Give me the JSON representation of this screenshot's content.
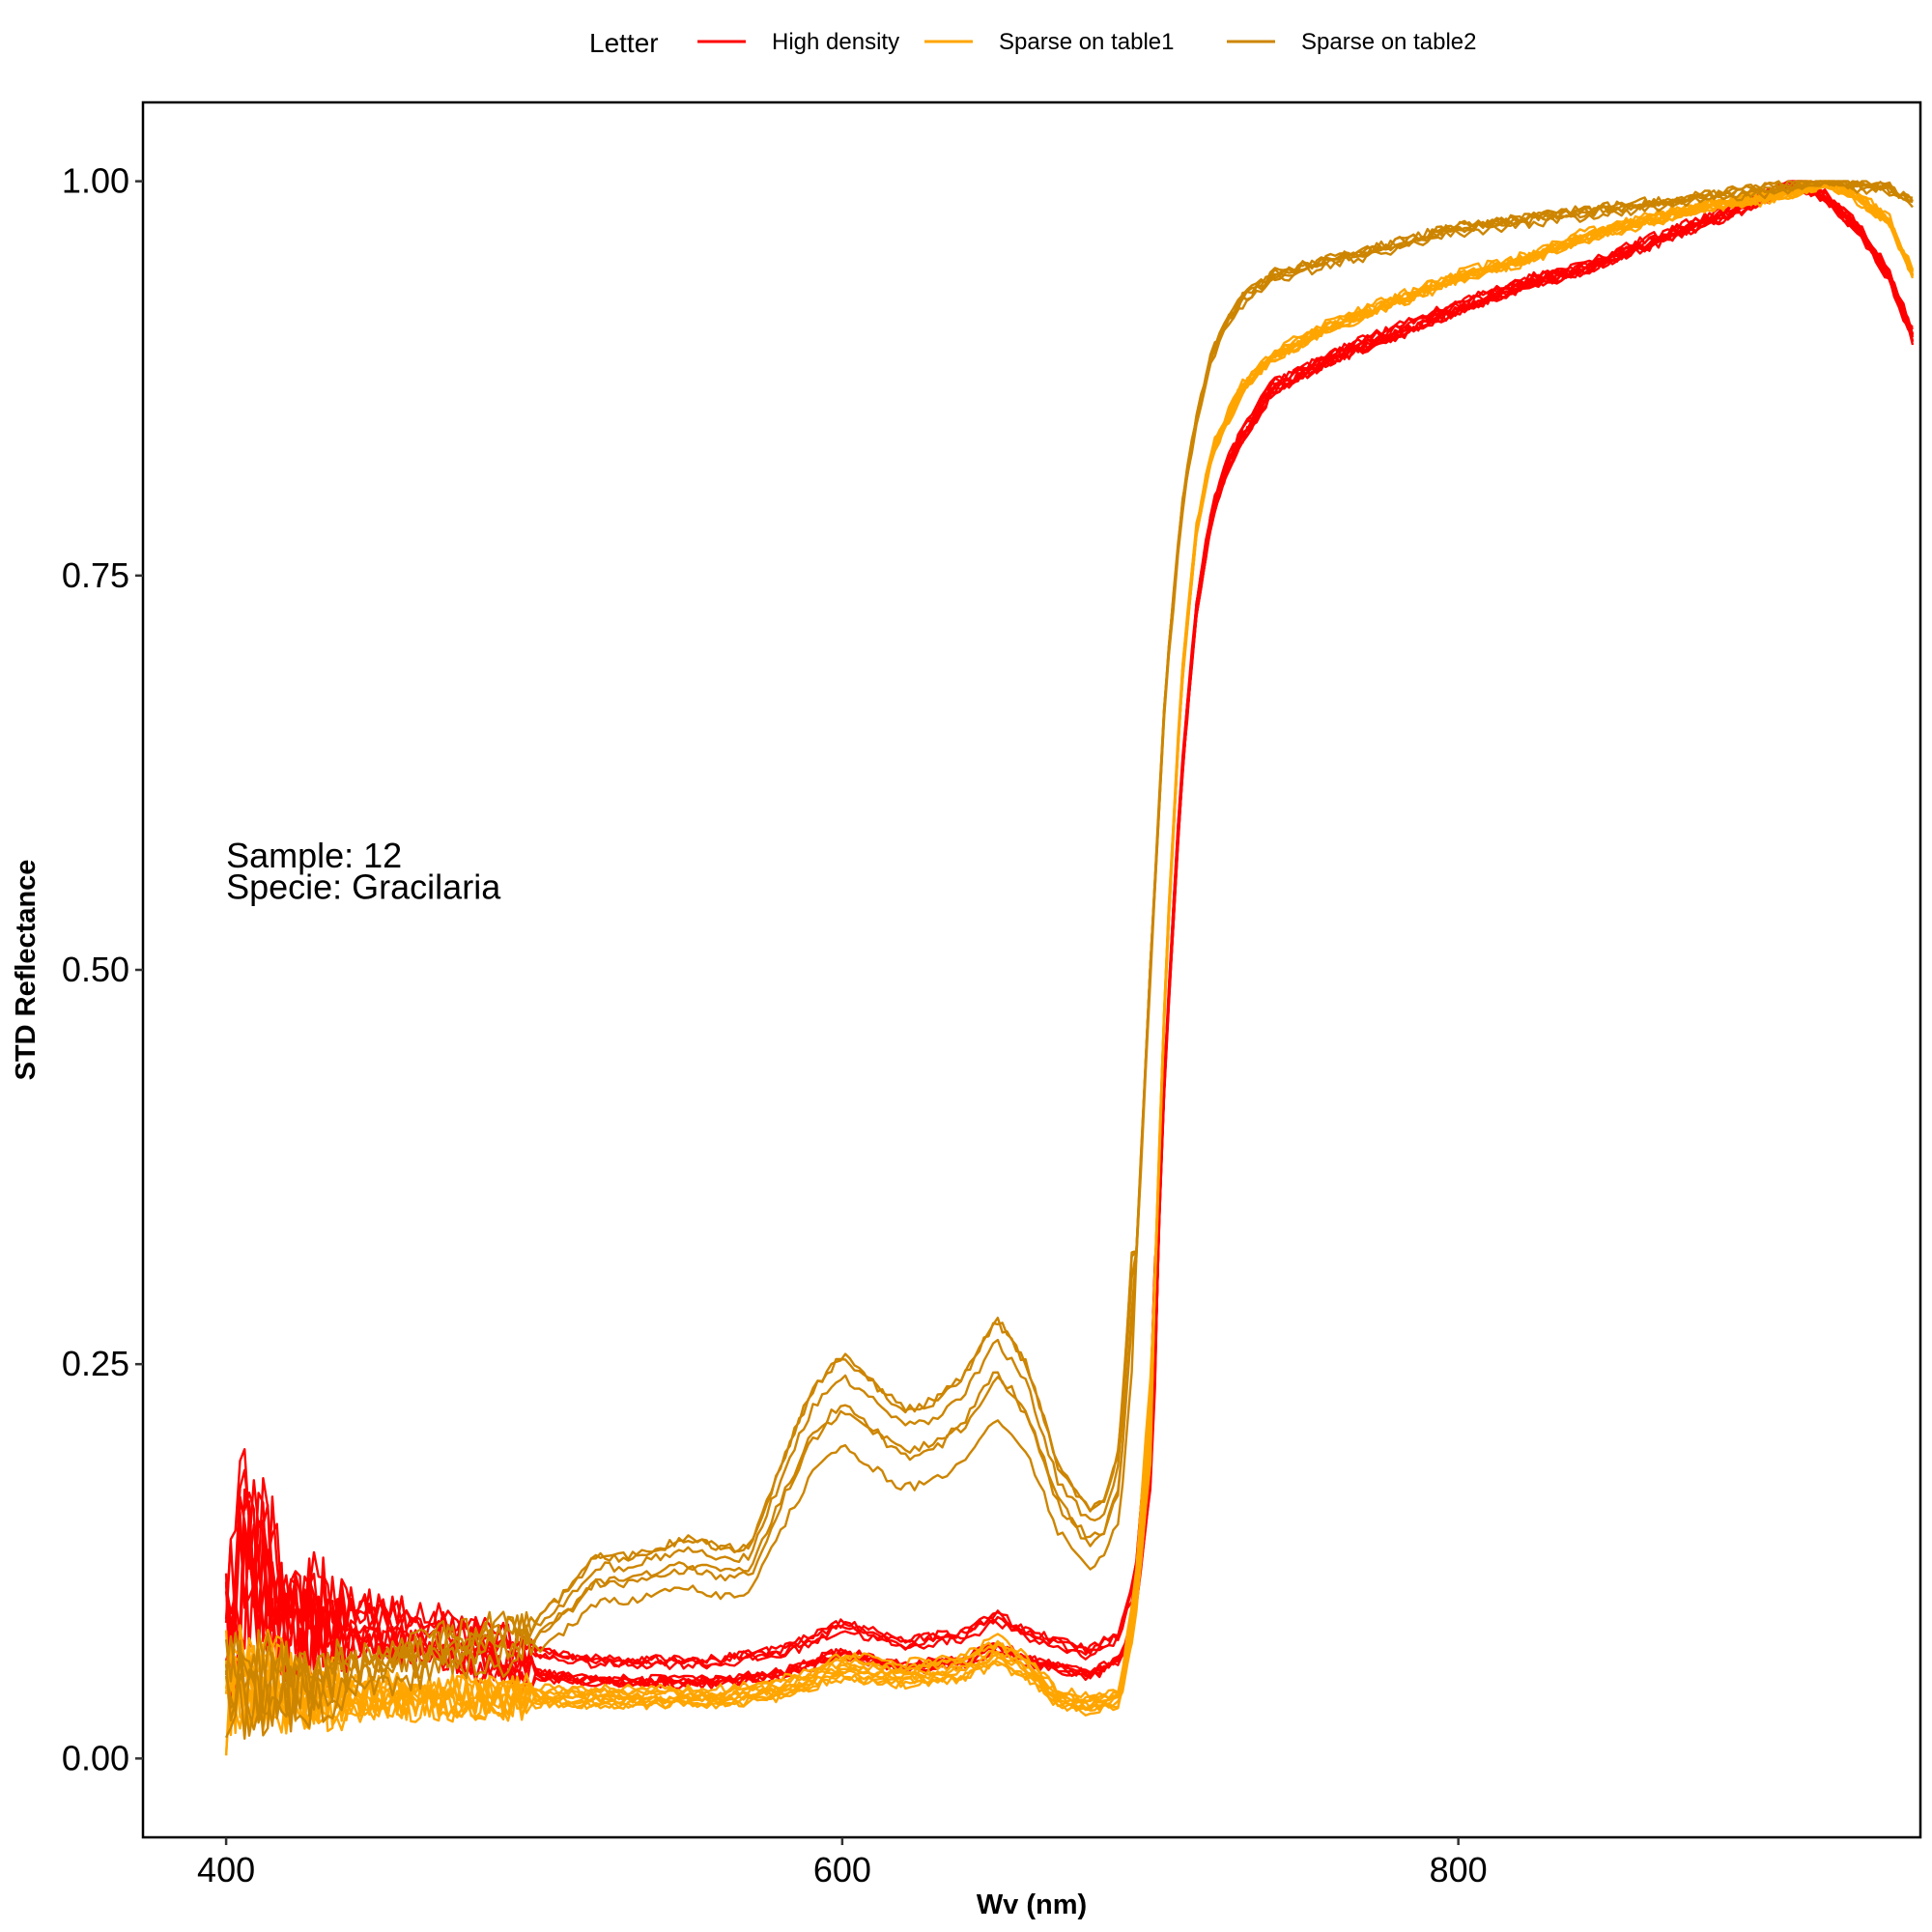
{
  "chart_data": {
    "type": "line",
    "title": "",
    "xlabel": "Wv (nm)",
    "ylabel": "STD Reflectance",
    "xlim": [
      373,
      950
    ],
    "ylim": [
      -0.05,
      1.05
    ],
    "x_ticks": [
      400,
      600,
      800
    ],
    "y_ticks": [
      0.0,
      0.25,
      0.5,
      0.75,
      1.0
    ],
    "y_tick_labels": [
      "0.00",
      "0.25",
      "0.50",
      "0.75",
      "1.00"
    ],
    "grid": false,
    "legend": {
      "title": "Letter",
      "placement": "top",
      "entries": [
        "High density",
        "Sparse on table1",
        "Sparse on table2"
      ]
    },
    "annotations": [
      "Sample: 12",
      "Specie: Gracilaria"
    ],
    "series": [
      {
        "name": "High density",
        "color": "#FF0000",
        "replicates": 10,
        "x": [
          400,
          405,
          410,
          420,
          440,
          460,
          480,
          500,
          520,
          540,
          560,
          580,
          600,
          620,
          640,
          650,
          660,
          680,
          690,
          695,
          700,
          705,
          710,
          715,
          720,
          725,
          730,
          740,
          750,
          760,
          780,
          800,
          820,
          840,
          860,
          880,
          900,
          910,
          920,
          930,
          940,
          948
        ],
        "y": [
          0.07,
          0.14,
          0.12,
          0.09,
          0.085,
          0.08,
          0.07,
          0.06,
          0.055,
          0.055,
          0.055,
          0.06,
          0.075,
          0.065,
          0.07,
          0.08,
          0.07,
          0.06,
          0.07,
          0.1,
          0.2,
          0.45,
          0.62,
          0.73,
          0.79,
          0.82,
          0.84,
          0.87,
          0.88,
          0.89,
          0.905,
          0.92,
          0.935,
          0.945,
          0.96,
          0.975,
          0.99,
          1.0,
          0.99,
          0.97,
          0.94,
          0.9
        ]
      },
      {
        "name": "Sparse on table1",
        "color": "#FFA500",
        "replicates": 10,
        "x": [
          400,
          410,
          420,
          440,
          460,
          480,
          500,
          520,
          540,
          560,
          580,
          600,
          620,
          640,
          650,
          660,
          670,
          680,
          690,
          695,
          700,
          705,
          710,
          715,
          720,
          730,
          740,
          760,
          780,
          800,
          820,
          840,
          860,
          880,
          900,
          920,
          930,
          940,
          948
        ],
        "y": [
          0.045,
          0.05,
          0.045,
          0.04,
          0.04,
          0.04,
          0.04,
          0.04,
          0.04,
          0.04,
          0.045,
          0.06,
          0.055,
          0.06,
          0.07,
          0.06,
          0.04,
          0.035,
          0.04,
          0.1,
          0.22,
          0.5,
          0.68,
          0.78,
          0.83,
          0.87,
          0.89,
          0.91,
          0.925,
          0.94,
          0.95,
          0.965,
          0.975,
          0.985,
          0.99,
          1.0,
          0.99,
          0.975,
          0.94
        ]
      },
      {
        "name": "Sparse on table2",
        "color": "#CD8500",
        "replicates": 6,
        "x": [
          400,
          410,
          420,
          440,
          460,
          480,
          490,
          500,
          510,
          520,
          530,
          540,
          550,
          560,
          570,
          580,
          590,
          600,
          610,
          620,
          630,
          640,
          650,
          660,
          670,
          680,
          685,
          690,
          695,
          700,
          705,
          710,
          715,
          720,
          725,
          730,
          740,
          760,
          780,
          800,
          820,
          840,
          860,
          880,
          900,
          920,
          940,
          948
        ],
        "y": [
          0.04,
          0.045,
          0.04,
          0.05,
          0.06,
          0.07,
          0.07,
          0.075,
          0.09,
          0.11,
          0.11,
          0.115,
          0.12,
          0.115,
          0.115,
          0.16,
          0.2,
          0.22,
          0.205,
          0.19,
          0.195,
          0.21,
          0.24,
          0.215,
          0.16,
          0.135,
          0.14,
          0.17,
          0.3,
          0.5,
          0.68,
          0.79,
          0.85,
          0.89,
          0.91,
          0.925,
          0.94,
          0.95,
          0.96,
          0.97,
          0.975,
          0.98,
          0.985,
          0.99,
          0.995,
          1.0,
          0.995,
          0.985
        ]
      }
    ]
  }
}
